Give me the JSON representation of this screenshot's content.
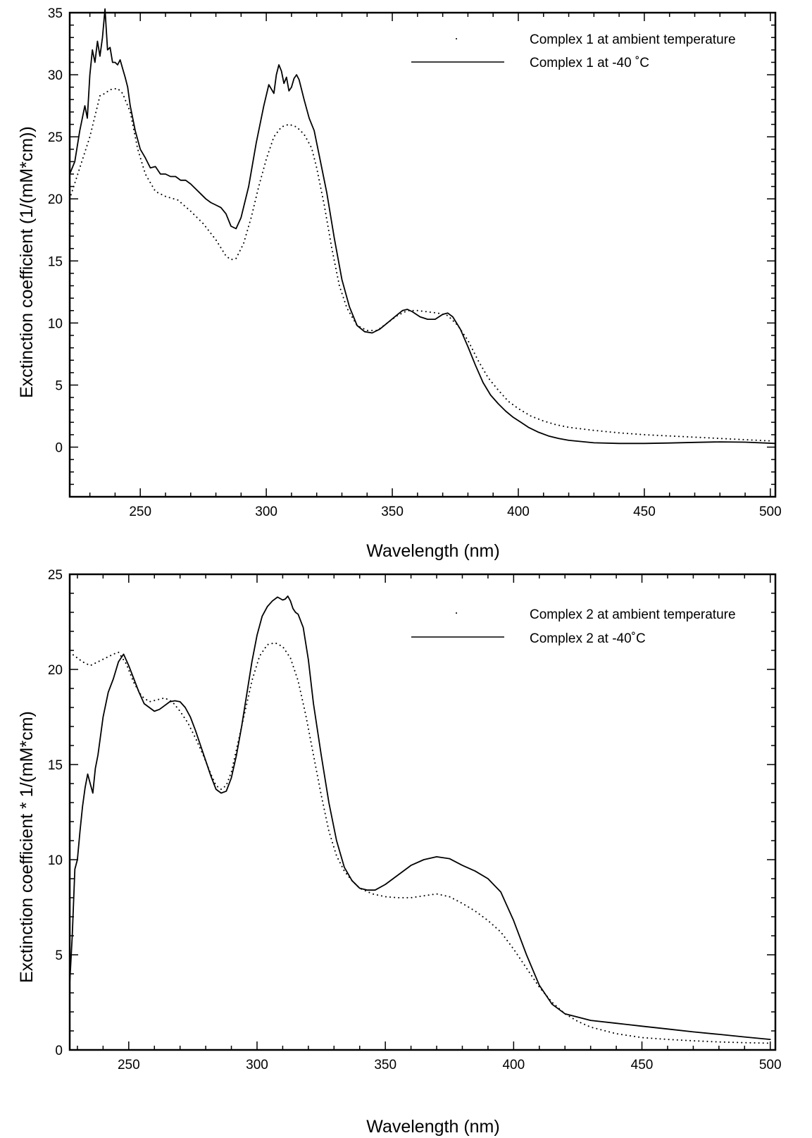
{
  "chart_data": [
    {
      "type": "line",
      "title": "",
      "xlabel": "Wavelength (nm)",
      "ylabel": "Exctinction coefficient (1/(mM*cm))",
      "xlim": [
        222,
        502
      ],
      "ylim": [
        -4,
        35
      ],
      "xticks": [
        250,
        300,
        350,
        400,
        450,
        500
      ],
      "yticks": [
        0,
        5,
        10,
        15,
        20,
        25,
        30,
        35
      ],
      "grid": false,
      "legend": "top-right",
      "series": [
        {
          "name": "Complex 1 at ambient temperature",
          "style": "dotted",
          "x": [
            222,
            226,
            230,
            234,
            236,
            238,
            241,
            243,
            246,
            249,
            252,
            256,
            260,
            265,
            270,
            275,
            280,
            284,
            286,
            288,
            291,
            294,
            297,
            300,
            303,
            306,
            309,
            312,
            315,
            318,
            320,
            323,
            326,
            329,
            332,
            336,
            340,
            344,
            348,
            352,
            356,
            360,
            364,
            368,
            372,
            376,
            380,
            384,
            388,
            392,
            396,
            400,
            405,
            410,
            415,
            420,
            430,
            440,
            450,
            460,
            470,
            480,
            490,
            500
          ],
          "y": [
            20,
            22.5,
            25,
            28.3,
            28.5,
            28.8,
            28.9,
            28.5,
            27,
            24,
            22,
            20.6,
            20.2,
            19.9,
            19,
            18,
            16.7,
            15.4,
            15.1,
            15.2,
            16.4,
            18.5,
            21,
            23.2,
            25,
            25.8,
            26,
            25.8,
            25.2,
            24.1,
            22.5,
            19.5,
            16,
            13,
            11.2,
            9.8,
            9.4,
            9.4,
            10,
            10.6,
            11,
            11,
            10.9,
            10.8,
            10.6,
            9.8,
            8.6,
            7,
            5.6,
            4.6,
            3.7,
            3.1,
            2.5,
            2.1,
            1.8,
            1.6,
            1.35,
            1.15,
            1.0,
            0.9,
            0.8,
            0.7,
            0.6,
            0.5
          ]
        },
        {
          "name": "Complex 1 at -40 ˚C",
          "style": "solid",
          "x": [
            222,
            224,
            226,
            228,
            229,
            230,
            231,
            232,
            233,
            234,
            235,
            236,
            237,
            238,
            239,
            240,
            241,
            242,
            243,
            244,
            245,
            246,
            248,
            250,
            252,
            254,
            256,
            258,
            260,
            262,
            264,
            266,
            268,
            270,
            272,
            274,
            276,
            278,
            280,
            282,
            284,
            286,
            288,
            290,
            293,
            296,
            299,
            301,
            303,
            304,
            305,
            306,
            307,
            308,
            309,
            310,
            311,
            312,
            313,
            315,
            317,
            319,
            321,
            324,
            327,
            330,
            333,
            336,
            339,
            342,
            345,
            348,
            351,
            354,
            356,
            358,
            361,
            364,
            367,
            370,
            372,
            374,
            377,
            380,
            383,
            386,
            389,
            392,
            395,
            398,
            401,
            404,
            408,
            412,
            416,
            420,
            425,
            430,
            440,
            450,
            460,
            470,
            480,
            490,
            502
          ],
          "y": [
            22,
            23,
            25.5,
            27.5,
            26.5,
            30,
            32,
            31,
            32.7,
            31.5,
            33,
            35.3,
            32,
            32.2,
            31,
            31,
            30.8,
            31.2,
            30.5,
            29.8,
            29,
            27.5,
            25.5,
            24,
            23.3,
            22.5,
            22.6,
            22,
            22,
            21.8,
            21.8,
            21.5,
            21.5,
            21.2,
            20.8,
            20.4,
            20,
            19.7,
            19.5,
            19.3,
            18.8,
            17.8,
            17.6,
            18.5,
            21,
            24.5,
            27.5,
            29.2,
            28.5,
            30,
            30.8,
            30.3,
            29.3,
            29.8,
            28.7,
            29,
            29.7,
            30,
            29.6,
            28,
            26.5,
            25.5,
            23.5,
            20.5,
            16.8,
            13.5,
            11.3,
            9.8,
            9.3,
            9.2,
            9.5,
            10,
            10.5,
            11,
            11.1,
            10.9,
            10.5,
            10.3,
            10.3,
            10.7,
            10.8,
            10.5,
            9.5,
            8.1,
            6.6,
            5.2,
            4.2,
            3.5,
            2.9,
            2.4,
            2.0,
            1.6,
            1.2,
            0.9,
            0.7,
            0.55,
            0.45,
            0.35,
            0.3,
            0.3,
            0.33,
            0.38,
            0.42,
            0.4,
            0.3
          ]
        }
      ]
    },
    {
      "type": "line",
      "title": "",
      "xlabel": "Wavelength (nm)",
      "ylabel": "Exctinction coefficient * 1/(mM*cm)",
      "xlim": [
        227,
        502
      ],
      "ylim": [
        0,
        25
      ],
      "xticks": [
        250,
        300,
        350,
        400,
        450,
        500
      ],
      "yticks": [
        0,
        5,
        10,
        15,
        20,
        25
      ],
      "grid": false,
      "legend": "top-right",
      "series": [
        {
          "name": "Complex 2 at ambient temperature",
          "style": "dotted",
          "x": [
            227,
            229,
            232,
            235,
            238,
            241,
            244,
            246,
            249,
            252,
            255,
            258,
            261,
            264,
            267,
            270,
            273,
            276,
            279,
            282,
            284,
            286,
            288,
            290,
            292,
            295,
            298,
            301,
            304,
            307,
            310,
            313,
            316,
            319,
            322,
            325,
            328,
            331,
            334,
            337,
            340,
            345,
            350,
            355,
            360,
            365,
            370,
            375,
            380,
            385,
            390,
            395,
            400,
            405,
            410,
            415,
            420,
            425,
            430,
            440,
            450,
            460,
            470,
            480,
            490,
            500
          ],
          "y": [
            20.9,
            20.7,
            20.4,
            20.2,
            20.4,
            20.6,
            20.8,
            20.9,
            20.3,
            19.3,
            18.6,
            18.3,
            18.4,
            18.5,
            18.3,
            17.8,
            17.2,
            16.4,
            15.5,
            14.5,
            13.9,
            13.7,
            13.9,
            14.6,
            15.8,
            17.6,
            19.4,
            20.7,
            21.3,
            21.4,
            21.2,
            20.6,
            19.4,
            17.6,
            15.5,
            13.4,
            11.5,
            10.2,
            9.4,
            8.9,
            8.5,
            8.2,
            8.05,
            8.0,
            8.0,
            8.1,
            8.2,
            8.05,
            7.7,
            7.3,
            6.8,
            6.2,
            5.3,
            4.3,
            3.3,
            2.5,
            1.9,
            1.5,
            1.2,
            0.85,
            0.65,
            0.55,
            0.48,
            0.42,
            0.38,
            0.35
          ]
        },
        {
          "name": "Complex 2 at -40˚C",
          "style": "solid",
          "x": [
            227,
            228,
            229,
            230,
            231,
            232,
            233,
            234,
            235,
            236,
            237,
            238,
            240,
            242,
            244,
            246,
            248,
            250,
            252,
            254,
            256,
            258,
            260,
            262,
            264,
            266,
            268,
            270,
            272,
            274,
            276,
            278,
            280,
            282,
            284,
            286,
            288,
            290,
            292,
            294,
            296,
            298,
            300,
            302,
            304,
            306,
            308,
            310,
            311,
            312,
            313,
            314,
            315,
            316,
            318,
            320,
            322,
            325,
            328,
            331,
            334,
            337,
            340,
            343,
            346,
            350,
            355,
            360,
            365,
            370,
            375,
            380,
            385,
            390,
            395,
            400,
            405,
            410,
            415,
            420,
            430,
            440,
            450,
            460,
            470,
            480,
            490,
            500
          ],
          "y": [
            3.5,
            6,
            9.5,
            10,
            11.5,
            12.8,
            13.8,
            14.5,
            14,
            13.5,
            14.8,
            15.5,
            17.5,
            18.8,
            19.5,
            20.4,
            20.8,
            20.2,
            19.5,
            18.8,
            18.2,
            18,
            17.8,
            17.9,
            18.1,
            18.3,
            18.35,
            18.3,
            18,
            17.5,
            16.8,
            16,
            15.2,
            14.4,
            13.7,
            13.5,
            13.6,
            14.3,
            15.5,
            17,
            18.7,
            20.4,
            21.8,
            22.8,
            23.3,
            23.6,
            23.8,
            23.65,
            23.7,
            23.85,
            23.6,
            23.2,
            23,
            22.9,
            22.2,
            20.5,
            18.2,
            15.5,
            13,
            11,
            9.6,
            8.9,
            8.5,
            8.4,
            8.4,
            8.7,
            9.2,
            9.7,
            10.0,
            10.15,
            10.05,
            9.7,
            9.4,
            9.0,
            8.3,
            6.8,
            5.0,
            3.4,
            2.4,
            1.9,
            1.55,
            1.4,
            1.25,
            1.1,
            0.95,
            0.82,
            0.68,
            0.55
          ]
        }
      ]
    }
  ]
}
